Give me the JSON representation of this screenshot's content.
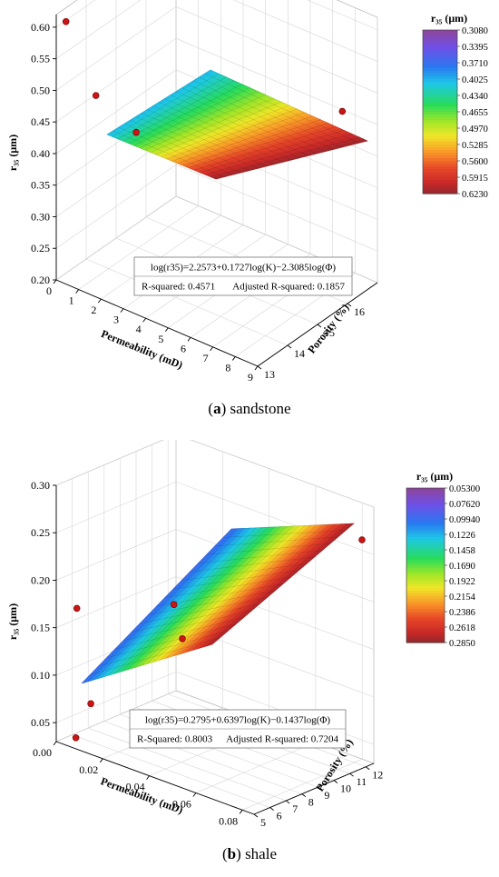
{
  "chart_data": [
    {
      "type": "surface3d",
      "caption_letter": "a",
      "caption_text": "sandstone",
      "zlabel": "r₃₅ (μm)",
      "xlabel": "Permeability (mD)",
      "ylabel": "Porosity (%)",
      "xlim": [
        0,
        9
      ],
      "ylim": [
        13,
        17
      ],
      "zlim": [
        0.2,
        0.62
      ],
      "x_ticks": [
        "0",
        "1",
        "2",
        "3",
        "4",
        "5",
        "6",
        "7",
        "8",
        "9"
      ],
      "y_ticks": [
        "13",
        "14",
        "15",
        "16"
      ],
      "z_ticks": [
        "0.20",
        "0.25",
        "0.30",
        "0.35",
        "0.40",
        "0.45",
        "0.50",
        "0.55",
        "0.60"
      ],
      "equation": "log(r35)=2.2573+0.1727log(K)−2.3085log(Φ)",
      "r_squared": "R-squared: 0.4571",
      "adj_r_squared": "Adjusted R-squared: 0.1857",
      "colorbar_title": "r₃₅ (μm)",
      "colorbar_ticks": [
        "0.3080",
        "0.3395",
        "0.3710",
        "0.4025",
        "0.4340",
        "0.4655",
        "0.4970",
        "0.5285",
        "0.5600",
        "0.5915",
        "0.6230"
      ],
      "points": [
        {
          "x": 0.3,
          "y": 13.1,
          "z": 0.61
        },
        {
          "x": 0.3,
          "y": 14.1,
          "z": 0.46
        },
        {
          "x": 2.5,
          "y": 13.8,
          "z": 0.445
        },
        {
          "x": 8.5,
          "y": 16.2,
          "z": 0.49
        },
        {
          "x": 3.5,
          "y": 13.2,
          "z": 0.26
        }
      ]
    },
    {
      "type": "surface3d",
      "caption_letter": "b",
      "caption_text": "shale",
      "zlabel": "r₃₅ (μm)",
      "xlabel": "Permeability (mD)",
      "ylabel": "Porosity (%)",
      "xlim": [
        0,
        0.085
      ],
      "ylim": [
        5,
        12.5
      ],
      "zlim": [
        0.03,
        0.3
      ],
      "x_ticks": [
        "0.00",
        "0.02",
        "0.04",
        "0.06",
        "0.08"
      ],
      "y_ticks": [
        "5",
        "6",
        "7",
        "8",
        "9",
        "10",
        "11",
        "12"
      ],
      "z_ticks": [
        "0.05",
        "0.10",
        "0.15",
        "0.20",
        "0.25",
        "0.30"
      ],
      "equation": "log(r35)=0.2795+0.6397log(K)−0.1437log(Φ)",
      "r_squared": "R-Squared: 0.8003",
      "adj_r_squared": "Adjusted R-squared: 0.7204",
      "colorbar_title": "r₃₅ (μm)",
      "colorbar_ticks": [
        "0.05300",
        "0.07620",
        "0.09940",
        "0.1226",
        "0.1458",
        "0.1690",
        "0.1922",
        "0.2154",
        "0.2386",
        "0.2618",
        "0.2850"
      ],
      "points": [
        {
          "x": 0.002,
          "y": 6.0,
          "z": 0.165
        },
        {
          "x": 0.008,
          "y": 6.0,
          "z": 0.07
        },
        {
          "x": 0.005,
          "y": 5.5,
          "z": 0.035
        },
        {
          "x": 0.03,
          "y": 8.0,
          "z": 0.18
        },
        {
          "x": 0.035,
          "y": 7.8,
          "z": 0.15
        },
        {
          "x": 0.082,
          "y": 12.2,
          "z": 0.265
        }
      ]
    }
  ]
}
